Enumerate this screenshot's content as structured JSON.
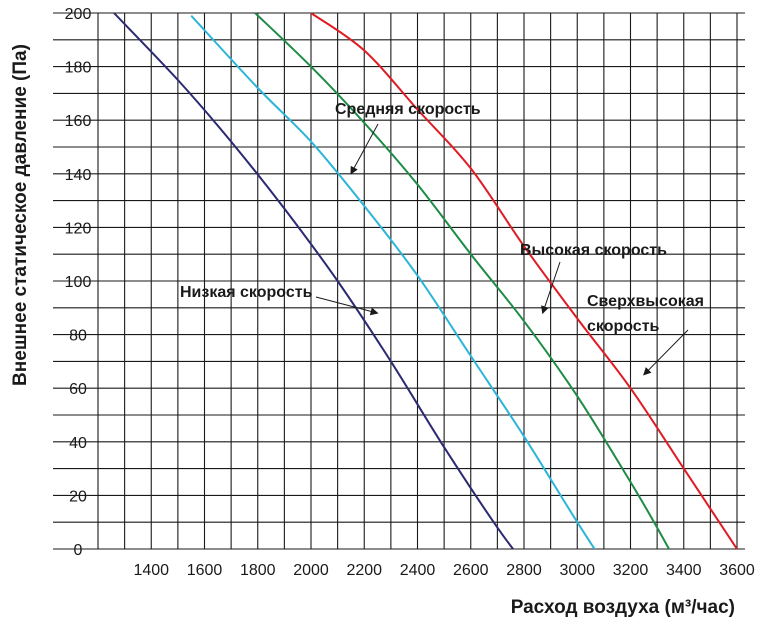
{
  "chart_data": {
    "type": "line",
    "title": "",
    "xlabel": "Расход воздуха (м³/час)",
    "ylabel": "Внешнее статическое давление (Па)",
    "xlim": [
      1200,
      3600
    ],
    "ylim": [
      0,
      200
    ],
    "x_ticks": [
      "1400",
      "1600",
      "1800",
      "2000",
      "2200",
      "2400",
      "2600",
      "2800",
      "3000",
      "3200",
      "3400",
      "3600"
    ],
    "y_ticks": [
      "0",
      "20",
      "40",
      "60",
      "80",
      "100",
      "120",
      "140",
      "160",
      "180",
      "200"
    ],
    "grid": true,
    "legend": "annotations",
    "series": [
      {
        "name": "Низкая скорость",
        "color": "#2b2a73",
        "x": [
          1260,
          1500,
          1700,
          1900,
          2100,
          2300,
          2500,
          2700,
          2800,
          2850
        ],
        "y": [
          200,
          175,
          152,
          127,
          100,
          70,
          38,
          8,
          -5,
          -10
        ]
      },
      {
        "name": "Средняя скорость",
        "color": "#2bb5d8",
        "x": [
          1550,
          1800,
          2000,
          2200,
          2400,
          2600,
          2800,
          3000,
          3100,
          3150
        ],
        "y": [
          199,
          172,
          152,
          128,
          102,
          72,
          42,
          10,
          -5,
          -10
        ]
      },
      {
        "name": "Высокая скорость",
        "color": "#1e8c46",
        "x": [
          1790,
          2000,
          2200,
          2400,
          2600,
          2800,
          3000,
          3200,
          3300,
          3400
        ],
        "y": [
          200,
          180,
          159,
          136,
          110,
          85,
          57,
          25,
          8,
          -10
        ]
      },
      {
        "name": "Сверхвысокая скорость",
        "color": "#e01b24",
        "x": [
          2000,
          2200,
          2400,
          2600,
          2800,
          3000,
          3200,
          3400,
          3500,
          3600
        ],
        "y": [
          200,
          186,
          164,
          142,
          113,
          86,
          60,
          30,
          15,
          0
        ]
      }
    ],
    "annotations": [
      {
        "label": "Средняя скорость",
        "series": 1,
        "point": [
          2150,
          140
        ]
      },
      {
        "label": "Высокая скорость",
        "series": 2,
        "point": [
          2870,
          88
        ]
      },
      {
        "label": "Сверхвысокая",
        "label2": "скорость",
        "series": 3,
        "point": [
          3250,
          65
        ]
      },
      {
        "label": "Низкая скорость",
        "series": 0,
        "point": [
          2250,
          88
        ]
      }
    ]
  }
}
